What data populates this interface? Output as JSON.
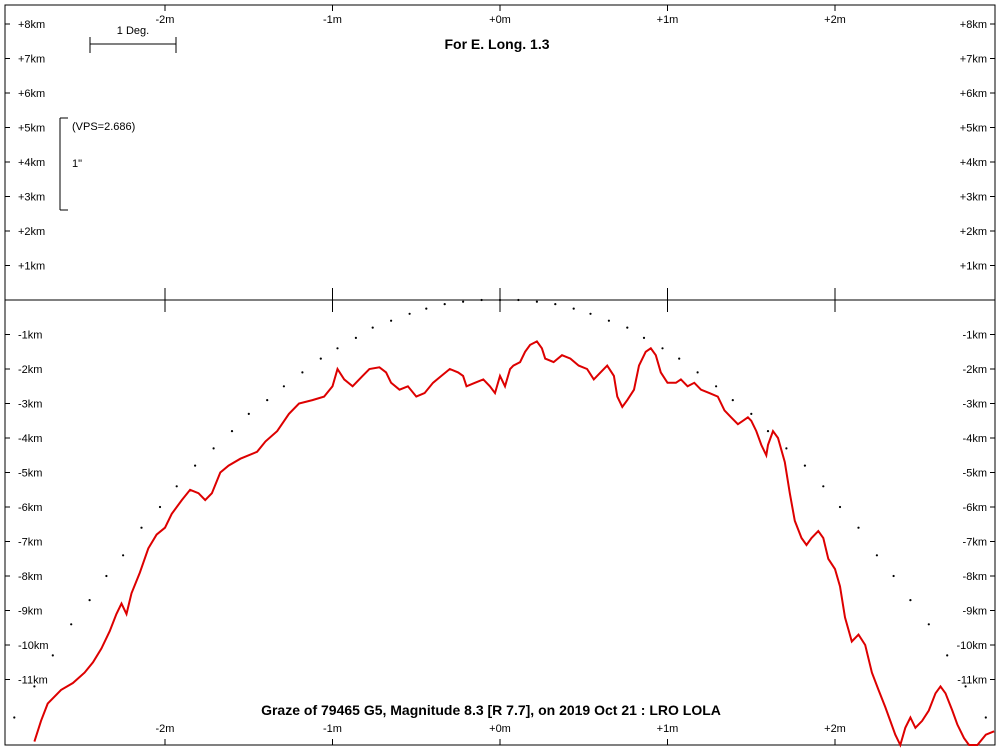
{
  "chart_data": {
    "type": "line",
    "title": "For E. Long. 1.3",
    "caption": "Graze of  79465 G5,  Magnitude 8.3 [R 7.7],  on 2019 Oct 21  :  LRO LOLA",
    "scale_bar_label": "1 Deg.",
    "vps_label": "(VPS=2.686)",
    "vps_unit_label": "1\"",
    "x_ticks": [
      {
        "value": -2,
        "label": "-2m"
      },
      {
        "value": -1,
        "label": "-1m"
      },
      {
        "value": 0,
        "label": "+0m"
      },
      {
        "value": 1,
        "label": "+1m"
      },
      {
        "value": 2,
        "label": "+2m"
      }
    ],
    "y_ticks": [
      {
        "value": 8,
        "label": "+8km"
      },
      {
        "value": 7,
        "label": "+7km"
      },
      {
        "value": 6,
        "label": "+6km"
      },
      {
        "value": 5,
        "label": "+5km"
      },
      {
        "value": 4,
        "label": "+4km"
      },
      {
        "value": 3,
        "label": "+3km"
      },
      {
        "value": 2,
        "label": "+2km"
      },
      {
        "value": 1,
        "label": "+1km"
      },
      {
        "value": -1,
        "label": "-1km"
      },
      {
        "value": -2,
        "label": "-2km"
      },
      {
        "value": -3,
        "label": "-3km"
      },
      {
        "value": -4,
        "label": "-4km"
      },
      {
        "value": -5,
        "label": "-5km"
      },
      {
        "value": -6,
        "label": "-6km"
      },
      {
        "value": -7,
        "label": "-7km"
      },
      {
        "value": -8,
        "label": "-8km"
      },
      {
        "value": -9,
        "label": "-9km"
      },
      {
        "value": -10,
        "label": "-10km"
      },
      {
        "value": -11,
        "label": "-11km"
      }
    ],
    "xlim": [
      -2.98,
      2.98
    ],
    "ylim": [
      -12.8,
      8.7
    ],
    "series": [
      {
        "kind": "limb_profile",
        "color": "#dd0000",
        "points": [
          [
            -2.78,
            -12.8
          ],
          [
            -2.74,
            -12.2
          ],
          [
            -2.7,
            -11.7
          ],
          [
            -2.62,
            -11.3
          ],
          [
            -2.55,
            -11.1
          ],
          [
            -2.48,
            -10.8
          ],
          [
            -2.43,
            -10.5
          ],
          [
            -2.38,
            -10.1
          ],
          [
            -2.33,
            -9.6
          ],
          [
            -2.29,
            -9.1
          ],
          [
            -2.26,
            -8.8
          ],
          [
            -2.23,
            -9.1
          ],
          [
            -2.2,
            -8.5
          ],
          [
            -2.15,
            -7.9
          ],
          [
            -2.1,
            -7.2
          ],
          [
            -2.05,
            -6.8
          ],
          [
            -2.0,
            -6.6
          ],
          [
            -1.96,
            -6.2
          ],
          [
            -1.9,
            -5.8
          ],
          [
            -1.85,
            -5.5
          ],
          [
            -1.8,
            -5.6
          ],
          [
            -1.76,
            -5.8
          ],
          [
            -1.72,
            -5.6
          ],
          [
            -1.67,
            -5.0
          ],
          [
            -1.62,
            -4.8
          ],
          [
            -1.55,
            -4.6
          ],
          [
            -1.45,
            -4.4
          ],
          [
            -1.4,
            -4.1
          ],
          [
            -1.33,
            -3.8
          ],
          [
            -1.26,
            -3.3
          ],
          [
            -1.2,
            -3.0
          ],
          [
            -1.12,
            -2.9
          ],
          [
            -1.05,
            -2.8
          ],
          [
            -1.0,
            -2.5
          ],
          [
            -0.97,
            -2.0
          ],
          [
            -0.93,
            -2.3
          ],
          [
            -0.88,
            -2.5
          ],
          [
            -0.82,
            -2.2
          ],
          [
            -0.78,
            -2.0
          ],
          [
            -0.72,
            -1.95
          ],
          [
            -0.68,
            -2.1
          ],
          [
            -0.65,
            -2.4
          ],
          [
            -0.6,
            -2.6
          ],
          [
            -0.55,
            -2.5
          ],
          [
            -0.5,
            -2.8
          ],
          [
            -0.45,
            -2.7
          ],
          [
            -0.4,
            -2.4
          ],
          [
            -0.35,
            -2.2
          ],
          [
            -0.3,
            -2.0
          ],
          [
            -0.25,
            -2.1
          ],
          [
            -0.22,
            -2.2
          ],
          [
            -0.2,
            -2.5
          ],
          [
            -0.15,
            -2.4
          ],
          [
            -0.1,
            -2.3
          ],
          [
            -0.06,
            -2.5
          ],
          [
            -0.03,
            -2.7
          ],
          [
            0.0,
            -2.2
          ],
          [
            0.03,
            -2.5
          ],
          [
            0.06,
            -2.0
          ],
          [
            0.08,
            -1.9
          ],
          [
            0.12,
            -1.8
          ],
          [
            0.15,
            -1.5
          ],
          [
            0.18,
            -1.3
          ],
          [
            0.22,
            -1.2
          ],
          [
            0.25,
            -1.4
          ],
          [
            0.27,
            -1.7
          ],
          [
            0.32,
            -1.8
          ],
          [
            0.37,
            -1.6
          ],
          [
            0.42,
            -1.7
          ],
          [
            0.47,
            -1.9
          ],
          [
            0.52,
            -2.0
          ],
          [
            0.56,
            -2.3
          ],
          [
            0.6,
            -2.1
          ],
          [
            0.64,
            -1.9
          ],
          [
            0.68,
            -2.2
          ],
          [
            0.7,
            -2.8
          ],
          [
            0.73,
            -3.1
          ],
          [
            0.76,
            -2.9
          ],
          [
            0.8,
            -2.6
          ],
          [
            0.83,
            -1.9
          ],
          [
            0.87,
            -1.5
          ],
          [
            0.9,
            -1.4
          ],
          [
            0.93,
            -1.6
          ],
          [
            0.96,
            -2.1
          ],
          [
            1.0,
            -2.4
          ],
          [
            1.05,
            -2.4
          ],
          [
            1.08,
            -2.3
          ],
          [
            1.12,
            -2.5
          ],
          [
            1.16,
            -2.4
          ],
          [
            1.2,
            -2.6
          ],
          [
            1.25,
            -2.7
          ],
          [
            1.3,
            -2.8
          ],
          [
            1.34,
            -3.2
          ],
          [
            1.38,
            -3.4
          ],
          [
            1.42,
            -3.6
          ],
          [
            1.45,
            -3.5
          ],
          [
            1.48,
            -3.4
          ],
          [
            1.5,
            -3.5
          ],
          [
            1.53,
            -3.8
          ],
          [
            1.56,
            -4.2
          ],
          [
            1.59,
            -4.5
          ],
          [
            1.6,
            -4.2
          ],
          [
            1.63,
            -3.8
          ],
          [
            1.66,
            -4.0
          ],
          [
            1.7,
            -4.7
          ],
          [
            1.73,
            -5.6
          ],
          [
            1.76,
            -6.4
          ],
          [
            1.8,
            -6.9
          ],
          [
            1.83,
            -7.1
          ],
          [
            1.86,
            -6.9
          ],
          [
            1.9,
            -6.7
          ],
          [
            1.93,
            -6.9
          ],
          [
            1.96,
            -7.5
          ],
          [
            2.0,
            -7.8
          ],
          [
            2.03,
            -8.3
          ],
          [
            2.06,
            -9.2
          ],
          [
            2.1,
            -9.9
          ],
          [
            2.14,
            -9.7
          ],
          [
            2.18,
            -10.0
          ],
          [
            2.22,
            -10.8
          ],
          [
            2.26,
            -11.3
          ],
          [
            2.3,
            -11.8
          ],
          [
            2.33,
            -12.2
          ],
          [
            2.36,
            -12.6
          ],
          [
            2.39,
            -12.9
          ],
          [
            2.42,
            -12.4
          ],
          [
            2.45,
            -12.1
          ],
          [
            2.48,
            -12.4
          ],
          [
            2.52,
            -12.2
          ],
          [
            2.56,
            -11.9
          ],
          [
            2.6,
            -11.4
          ],
          [
            2.63,
            -11.2
          ],
          [
            2.66,
            -11.4
          ],
          [
            2.7,
            -11.9
          ],
          [
            2.73,
            -12.3
          ],
          [
            2.77,
            -12.7
          ],
          [
            2.8,
            -13.0
          ],
          [
            2.85,
            -12.9
          ],
          [
            2.9,
            -12.6
          ],
          [
            2.95,
            -12.5
          ]
        ]
      },
      {
        "kind": "mean_limb_dots",
        "color": "#000000",
        "points": [
          [
            -2.9,
            -12.1
          ],
          [
            -2.78,
            -11.2
          ],
          [
            -2.67,
            -10.3
          ],
          [
            -2.56,
            -9.4
          ],
          [
            -2.45,
            -8.7
          ],
          [
            -2.35,
            -8.0
          ],
          [
            -2.25,
            -7.4
          ],
          [
            -2.14,
            -6.6
          ],
          [
            -2.03,
            -6.0
          ],
          [
            -1.93,
            -5.4
          ],
          [
            -1.82,
            -4.8
          ],
          [
            -1.71,
            -4.3
          ],
          [
            -1.6,
            -3.8
          ],
          [
            -1.5,
            -3.3
          ],
          [
            -1.39,
            -2.9
          ],
          [
            -1.29,
            -2.5
          ],
          [
            -1.18,
            -2.1
          ],
          [
            -1.07,
            -1.7
          ],
          [
            -0.97,
            -1.4
          ],
          [
            -0.86,
            -1.1
          ],
          [
            -0.76,
            -0.8
          ],
          [
            -0.65,
            -0.6
          ],
          [
            -0.54,
            -0.4
          ],
          [
            -0.44,
            -0.25
          ],
          [
            -0.33,
            -0.12
          ],
          [
            -0.22,
            -0.05
          ],
          [
            -0.11,
            0.0
          ],
          [
            0.0,
            0.0
          ],
          [
            0.11,
            0.0
          ],
          [
            0.22,
            -0.05
          ],
          [
            0.33,
            -0.12
          ],
          [
            0.44,
            -0.25
          ],
          [
            0.54,
            -0.4
          ],
          [
            0.65,
            -0.6
          ],
          [
            0.76,
            -0.8
          ],
          [
            0.86,
            -1.1
          ],
          [
            0.97,
            -1.4
          ],
          [
            1.07,
            -1.7
          ],
          [
            1.18,
            -2.1
          ],
          [
            1.29,
            -2.5
          ],
          [
            1.39,
            -2.9
          ],
          [
            1.5,
            -3.3
          ],
          [
            1.6,
            -3.8
          ],
          [
            1.71,
            -4.3
          ],
          [
            1.82,
            -4.8
          ],
          [
            1.93,
            -5.4
          ],
          [
            2.03,
            -6.0
          ],
          [
            2.14,
            -6.6
          ],
          [
            2.25,
            -7.4
          ],
          [
            2.35,
            -8.0
          ],
          [
            2.45,
            -8.7
          ],
          [
            2.56,
            -9.4
          ],
          [
            2.67,
            -10.3
          ],
          [
            2.78,
            -11.2
          ],
          [
            2.9,
            -12.1
          ]
        ]
      }
    ]
  }
}
